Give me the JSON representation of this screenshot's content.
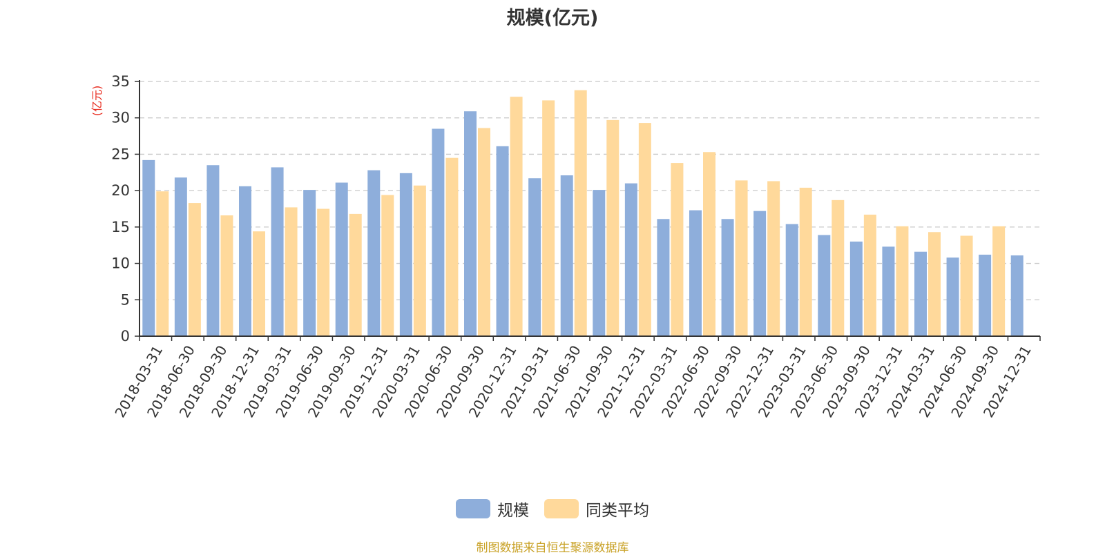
{
  "chart_data": {
    "type": "bar",
    "title": "规模(亿元)",
    "ylabel": "(亿元)",
    "xlabel": "",
    "ylim": [
      0,
      35
    ],
    "y_ticks": [
      0,
      5,
      10,
      15,
      20,
      25,
      30,
      35
    ],
    "grid": true,
    "legend_position": "bottom-center",
    "categories": [
      "2018-03-31",
      "2018-06-30",
      "2018-09-30",
      "2018-12-31",
      "2019-03-31",
      "2019-06-30",
      "2019-09-30",
      "2019-12-31",
      "2020-03-31",
      "2020-06-30",
      "2020-09-30",
      "2020-12-31",
      "2021-03-31",
      "2021-06-30",
      "2021-09-30",
      "2021-12-31",
      "2022-03-31",
      "2022-06-30",
      "2022-09-30",
      "2022-12-31",
      "2023-03-31",
      "2023-06-30",
      "2023-09-30",
      "2023-12-31",
      "2024-03-31",
      "2024-06-30",
      "2024-09-30",
      "2024-12-31"
    ],
    "series": [
      {
        "name": "规模",
        "color": "#8eaedb",
        "values": [
          24.2,
          21.8,
          23.5,
          20.6,
          23.2,
          20.1,
          21.1,
          22.8,
          22.4,
          28.5,
          30.9,
          26.1,
          21.7,
          22.1,
          20.1,
          21.0,
          16.1,
          17.3,
          16.1,
          17.2,
          15.4,
          13.9,
          13.0,
          12.3,
          11.6,
          10.8,
          11.2,
          11.1
        ]
      },
      {
        "name": "同类平均",
        "color": "#ffd99b",
        "values": [
          19.9,
          18.3,
          16.6,
          14.4,
          17.7,
          17.5,
          16.8,
          19.4,
          20.7,
          24.5,
          28.6,
          32.9,
          32.4,
          33.8,
          29.7,
          29.3,
          23.8,
          25.3,
          21.4,
          21.3,
          20.4,
          18.7,
          16.7,
          15.1,
          14.3,
          13.8,
          15.1,
          null
        ]
      }
    ]
  },
  "source_note": "制图数据来自恒生聚源数据库",
  "colors": {
    "axis": "#333333",
    "grid": "#c8c8c8",
    "ylabel": "#e8291c",
    "source": "#c9a227"
  }
}
